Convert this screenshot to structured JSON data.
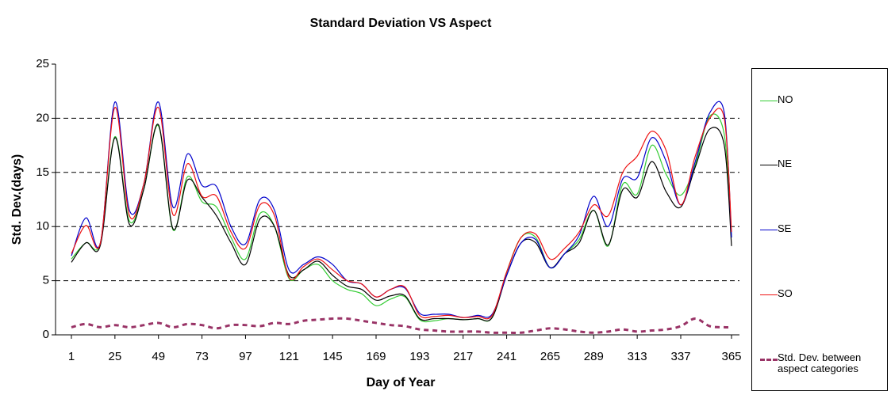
{
  "chart_data": {
    "type": "line",
    "title": "Standard Deviation VS Aspect",
    "x_label": "Day of Year",
    "y_label": "Std. Dev.(days)",
    "x": [
      1,
      9,
      17,
      25,
      33,
      41,
      49,
      57,
      65,
      73,
      81,
      89,
      97,
      105,
      113,
      121,
      129,
      137,
      145,
      153,
      161,
      169,
      177,
      185,
      193,
      201,
      209,
      217,
      225,
      233,
      241,
      249,
      257,
      265,
      273,
      281,
      289,
      297,
      305,
      313,
      321,
      329,
      337,
      345,
      353,
      361,
      365
    ],
    "series": [
      {
        "name": "NO",
        "color": "#33cc33",
        "style": "solid",
        "values": [
          7,
          8.5,
          8.5,
          18.3,
          10.5,
          13.5,
          19.3,
          9.7,
          14.6,
          12.3,
          11.8,
          9,
          7,
          11.2,
          10,
          5.2,
          6,
          6.5,
          5,
          4.2,
          3.8,
          2.7,
          3.3,
          3.5,
          1.4,
          1.3,
          1.5,
          1.4,
          1.5,
          1.6,
          5.8,
          9,
          9,
          6.2,
          7.5,
          8.8,
          11.5,
          8.2,
          13.9,
          13,
          17.5,
          14.8,
          12.9,
          15.7,
          20.2,
          18.5,
          9
        ]
      },
      {
        "name": "NE",
        "color": "#000000",
        "style": "solid",
        "values": [
          6.7,
          8.5,
          8.3,
          18.2,
          10.2,
          13.5,
          19.4,
          9.8,
          14.3,
          12.7,
          11,
          8.5,
          6.5,
          10.7,
          10,
          5.5,
          6,
          6.8,
          5.5,
          4.5,
          4.2,
          3.2,
          3.6,
          3.6,
          1.5,
          1.5,
          1.5,
          1.4,
          1.5,
          1.6,
          5.5,
          8.5,
          8.5,
          6.2,
          7.5,
          8.5,
          11.5,
          8.3,
          13.4,
          12.7,
          16,
          13.2,
          11.8,
          15.5,
          19,
          17.5,
          8.2
        ]
      },
      {
        "name": "SE",
        "color": "#0000cc",
        "style": "solid",
        "values": [
          7.3,
          10.8,
          8.5,
          21.5,
          11.5,
          14,
          21.5,
          11.8,
          16.7,
          13.8,
          13.7,
          10,
          8.4,
          12.5,
          11.5,
          6,
          6.5,
          7.2,
          6.5,
          5,
          4.7,
          3.5,
          4.2,
          4.3,
          2,
          1.9,
          1.9,
          1.6,
          1.8,
          1.9,
          5.5,
          8.5,
          8.8,
          6.2,
          7.5,
          9.2,
          12.8,
          10,
          14.4,
          14.5,
          18.2,
          16,
          12,
          16,
          20.5,
          20.5,
          9
        ]
      },
      {
        "name": "SO",
        "color": "#ee1111",
        "style": "solid",
        "values": [
          7.5,
          10.1,
          8.5,
          21,
          11,
          14,
          21,
          11.1,
          15.8,
          12.8,
          12.8,
          9.5,
          8,
          12,
          11,
          5.3,
          6.3,
          7,
          6,
          5,
          4.7,
          3.5,
          4.2,
          4.4,
          1.8,
          1.7,
          1.8,
          1.6,
          1.7,
          1.8,
          5.8,
          9,
          9.3,
          7,
          8,
          9.5,
          12,
          11,
          15,
          16.5,
          18.8,
          17,
          12,
          16.5,
          20,
          20,
          9.5
        ]
      },
      {
        "name": "Std. Dev. between aspect categories",
        "color": "#993366",
        "style": "dashed",
        "values": [
          0.7,
          1,
          0.7,
          0.9,
          0.7,
          0.9,
          1.1,
          0.7,
          1,
          0.9,
          0.6,
          0.9,
          0.9,
          0.8,
          1.1,
          1,
          1.3,
          1.4,
          1.5,
          1.5,
          1.3,
          1.1,
          0.9,
          0.8,
          0.5,
          0.4,
          0.3,
          0.3,
          0.3,
          0.2,
          0.2,
          0.2,
          0.4,
          0.6,
          0.5,
          0.3,
          0.2,
          0.3,
          0.5,
          0.3,
          0.4,
          0.5,
          0.8,
          1.5,
          0.8,
          0.7,
          0.7
        ]
      }
    ],
    "xlim": [
      1,
      365
    ],
    "xticks": [
      1,
      25,
      49,
      73,
      97,
      121,
      145,
      169,
      193,
      217,
      241,
      265,
      289,
      313,
      337,
      365
    ],
    "ylim": [
      0,
      25
    ],
    "yticks": [
      0,
      5,
      10,
      15,
      20,
      25
    ],
    "grid": true,
    "legend": "right"
  }
}
